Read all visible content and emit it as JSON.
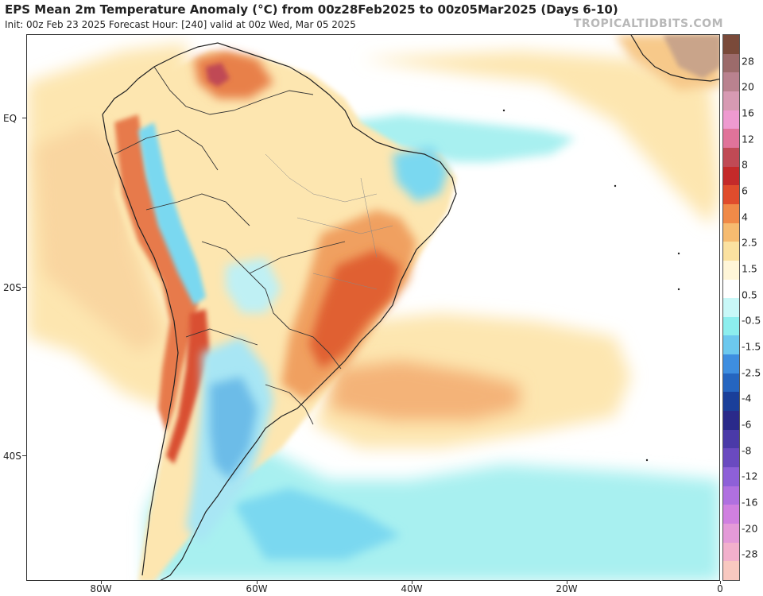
{
  "title": "EPS Mean 2m Temperature Anomaly (°C) from 00z28Feb2025 to 00z05Mar2025 (Days 6-10)",
  "subtitle": "Init: 00z Feb 23 2025   Forecast Hour: [240]   valid at 00z Wed, Mar 05 2025",
  "watermark": "TROPICALTIDBITS.COM",
  "lat_labels": [
    "EQ",
    "20S",
    "40S"
  ],
  "lon_labels": [
    "80W",
    "60W",
    "40W",
    "20W",
    "0"
  ],
  "colorbar": {
    "labels": [
      "28",
      "20",
      "16",
      "12",
      "8",
      "6",
      "4",
      "2.5",
      "1.5",
      "0.5",
      "-0.5",
      "-1.5",
      "-2.5",
      "-4",
      "-6",
      "-8",
      "-12",
      "-16",
      "-20",
      "-28"
    ],
    "colors": [
      "#7a4a3a",
      "#9c6b6b",
      "#b9828f",
      "#d79ab3",
      "#ee9ad0",
      "#e0739a",
      "#c04a55",
      "#c42a2a",
      "#e04c2c",
      "#f08a48",
      "#f6bb70",
      "#fbe1a0",
      "#fff6d8",
      "#ffffff",
      "#c8f8f8",
      "#8ceeee",
      "#6cc8ee",
      "#3e8ee0",
      "#2565c0",
      "#1a3f9a",
      "#2a2a8a",
      "#4a3aa8",
      "#6a4ac0",
      "#8e60d8",
      "#b070e0",
      "#d080e0",
      "#e49ad8",
      "#f2b0cc",
      "#f8c8c0"
    ]
  },
  "colors": {
    "ocean": "#ffffff",
    "warm_light": "#fde6b0",
    "warm": "#f7c98a",
    "warm_orange": "#f0a060",
    "hot": "#e06030",
    "very_hot": "#c83a2a",
    "cool_light": "#a8f0f0",
    "cool": "#7ad8f0",
    "cold": "#4a98e0",
    "border": "#222222"
  }
}
